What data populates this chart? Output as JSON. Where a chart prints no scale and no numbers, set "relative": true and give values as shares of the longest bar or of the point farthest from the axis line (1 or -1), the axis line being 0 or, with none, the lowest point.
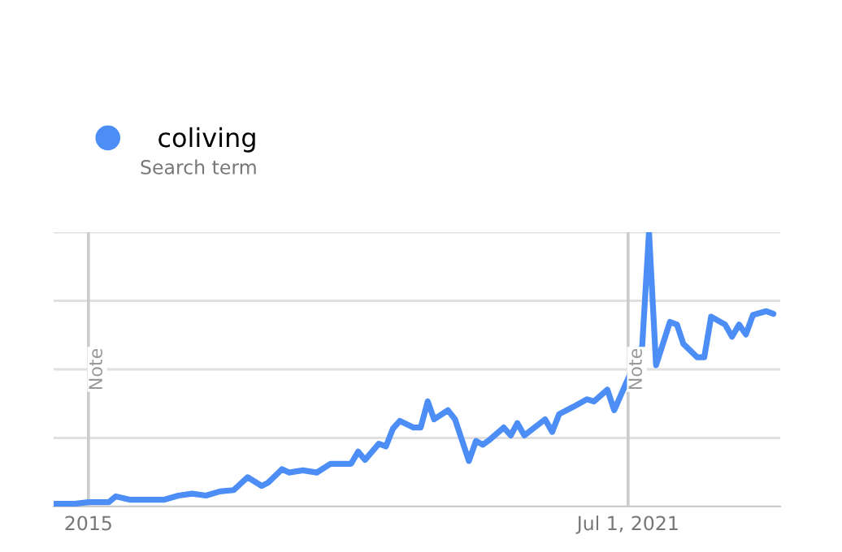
{
  "chart_data": {
    "type": "line",
    "relative": true,
    "grid": "y",
    "legend": "top left",
    "annotations": [
      "Search term"
    ],
    "xlim": [
      "2014-08",
      "2023-05"
    ],
    "xticks": [
      {
        "value": "2015-01-01",
        "label": "2015"
      },
      {
        "value": "2021-07-01",
        "label": "Jul 1, 2021"
      }
    ],
    "ref_lines": [
      {
        "axis": "x",
        "value": "2015-01-01",
        "label": "Note",
        "color": "#cccccc"
      },
      {
        "axis": "x",
        "value": "2021-07-01",
        "label": "Note",
        "color": "#cccccc"
      }
    ],
    "x": [
      "2014-08",
      "2014-11",
      "2015-01",
      "2015-04",
      "2015-05",
      "2015-07",
      "2015-12",
      "2016-02",
      "2016-04",
      "2016-06",
      "2016-08",
      "2016-10",
      "2016-12",
      "2017-02",
      "2017-03",
      "2017-05",
      "2017-06",
      "2017-08",
      "2017-10",
      "2017-12",
      "2018-03",
      "2018-04",
      "2018-05",
      "2018-07",
      "2018-08",
      "2018-09",
      "2018-10",
      "2018-12",
      "2019-01",
      "2019-02",
      "2019-03",
      "2019-05",
      "2019-06",
      "2019-08",
      "2019-09",
      "2019-10",
      "2019-11",
      "2020-01",
      "2020-02",
      "2020-03",
      "2020-04",
      "2020-07",
      "2020-08",
      "2020-09",
      "2020-11",
      "2021-01",
      "2021-02",
      "2021-04",
      "2021-05",
      "2021-07",
      "2021-09",
      "2021-10",
      "2021-11",
      "2022-01",
      "2022-02",
      "2022-03",
      "2022-05",
      "2022-06",
      "2022-07",
      "2022-09",
      "2022-10",
      "2022-11",
      "2022-12",
      "2023-01",
      "2023-03",
      "2023-04"
    ],
    "series": [
      {
        "name": "coliving",
        "color": "#4c8df6",
        "values": [
          0.01,
          0.01,
          0.016,
          0.016,
          0.037,
          0.025,
          0.025,
          0.04,
          0.047,
          0.04,
          0.055,
          0.06,
          0.107,
          0.075,
          0.087,
          0.136,
          0.124,
          0.132,
          0.124,
          0.156,
          0.156,
          0.2,
          0.17,
          0.229,
          0.219,
          0.284,
          0.312,
          0.288,
          0.288,
          0.383,
          0.318,
          0.351,
          0.318,
          0.166,
          0.239,
          0.225,
          0.244,
          0.288,
          0.259,
          0.304,
          0.259,
          0.318,
          0.272,
          0.337,
          0.363,
          0.391,
          0.383,
          0.426,
          0.351,
          0.466,
          0.584,
          1.0,
          0.515,
          0.673,
          0.663,
          0.593,
          0.544,
          0.544,
          0.692,
          0.663,
          0.619,
          0.663,
          0.627,
          0.698,
          0.712,
          0.702
        ]
      }
    ]
  }
}
